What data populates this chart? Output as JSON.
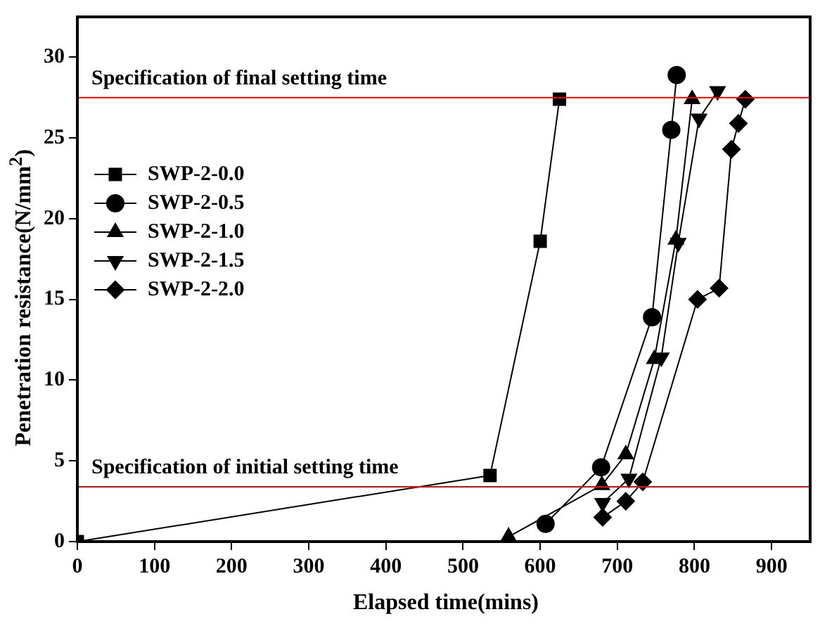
{
  "chart_data": {
    "type": "line",
    "xlabel": "Elapsed time(mins)",
    "ylabel": "Penetration resistance(N/mm$^{2}$)",
    "xlim": [
      0,
      950
    ],
    "xticks": [
      0,
      100,
      200,
      300,
      400,
      500,
      600,
      700,
      800,
      900
    ],
    "ylim": [
      0,
      32.5
    ],
    "yticks": [
      0,
      5,
      10,
      15,
      20,
      25,
      30
    ],
    "grid": false,
    "legend": "left",
    "line_style": "solid",
    "series": [
      {
        "name": "SWP-2-0.0",
        "color": "#000000",
        "marker": "square",
        "x": [
          0,
          535,
          600,
          625
        ],
        "values": [
          0,
          4.1,
          18.6,
          27.4
        ]
      },
      {
        "name": "SWP-2-0.5",
        "color": "#000000",
        "marker": "circle",
        "x": [
          607,
          679,
          745,
          770,
          777
        ],
        "values": [
          1.1,
          4.6,
          13.9,
          25.5,
          28.9
        ]
      },
      {
        "name": "SWP-2-1.0",
        "color": "#000000",
        "marker": "triangle",
        "x": [
          559,
          680,
          711,
          748,
          776,
          797
        ],
        "values": [
          0.3,
          3.5,
          5.4,
          11.3,
          18.7,
          27.4
        ]
      },
      {
        "name": "SWP-2-1.5",
        "color": "#000000",
        "marker": "triangle-down",
        "x": [
          681,
          715,
          757,
          779,
          806,
          830
        ],
        "values": [
          2.4,
          3.9,
          11.4,
          18.5,
          26.2,
          27.9
        ]
      },
      {
        "name": "SWP-2-2.0",
        "color": "#000000",
        "marker": "diamond",
        "x": [
          681,
          711,
          733,
          804,
          832,
          848,
          857,
          866
        ],
        "values": [
          1.5,
          2.5,
          3.7,
          15.0,
          15.7,
          24.3,
          25.9,
          27.4
        ]
      }
    ],
    "ref_lines": [
      {
        "axis": "y",
        "value": 27.5,
        "label": "Specification of final setting time",
        "color": "#ff0000"
      },
      {
        "axis": "y",
        "value": 3.4,
        "label": "Specification of initial setting time",
        "color": "#ff0000"
      }
    ]
  }
}
